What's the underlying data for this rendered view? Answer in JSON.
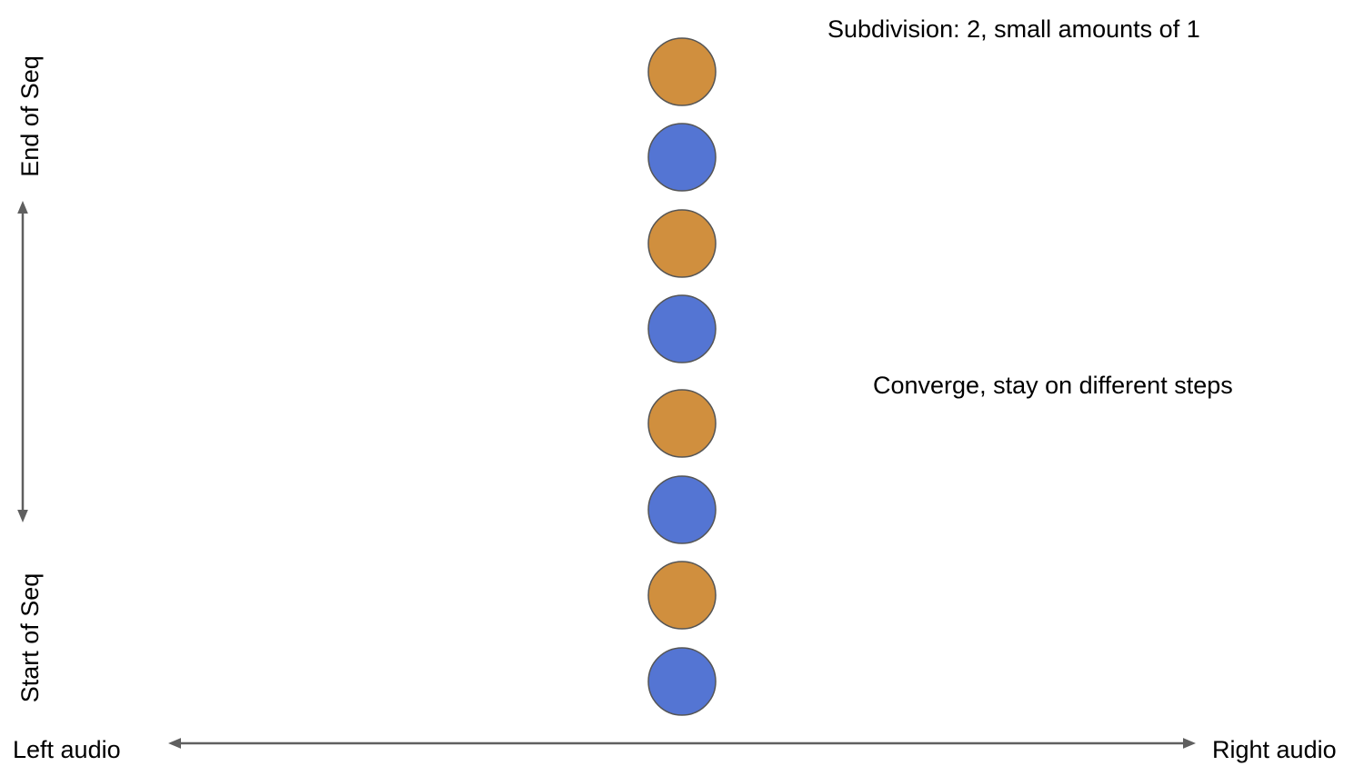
{
  "subtitle": "Subdivision: 2, small amounts of 1",
  "note": "Converge, stay on different steps",
  "axes": {
    "vertical_top": "End of Seq",
    "vertical_bottom": "Start of Seq",
    "horizontal_left": "Left audio",
    "horizontal_right": "Right audio"
  },
  "colors": {
    "orange": "#D08F3E",
    "blue": "#5475D3",
    "outline": "#555555",
    "arrow": "#5f5f5f"
  },
  "events": [
    {
      "order": 8,
      "pan": 0,
      "color": "orange"
    },
    {
      "order": 7,
      "pan": 0,
      "color": "blue"
    },
    {
      "order": 6,
      "pan": 0,
      "color": "orange"
    },
    {
      "order": 5,
      "pan": 0,
      "color": "blue"
    },
    {
      "order": 4,
      "pan": 0,
      "color": "orange"
    },
    {
      "order": 3,
      "pan": 0,
      "color": "blue"
    },
    {
      "order": 2,
      "pan": 0,
      "color": "orange"
    },
    {
      "order": 1,
      "pan": 0,
      "color": "blue"
    }
  ]
}
